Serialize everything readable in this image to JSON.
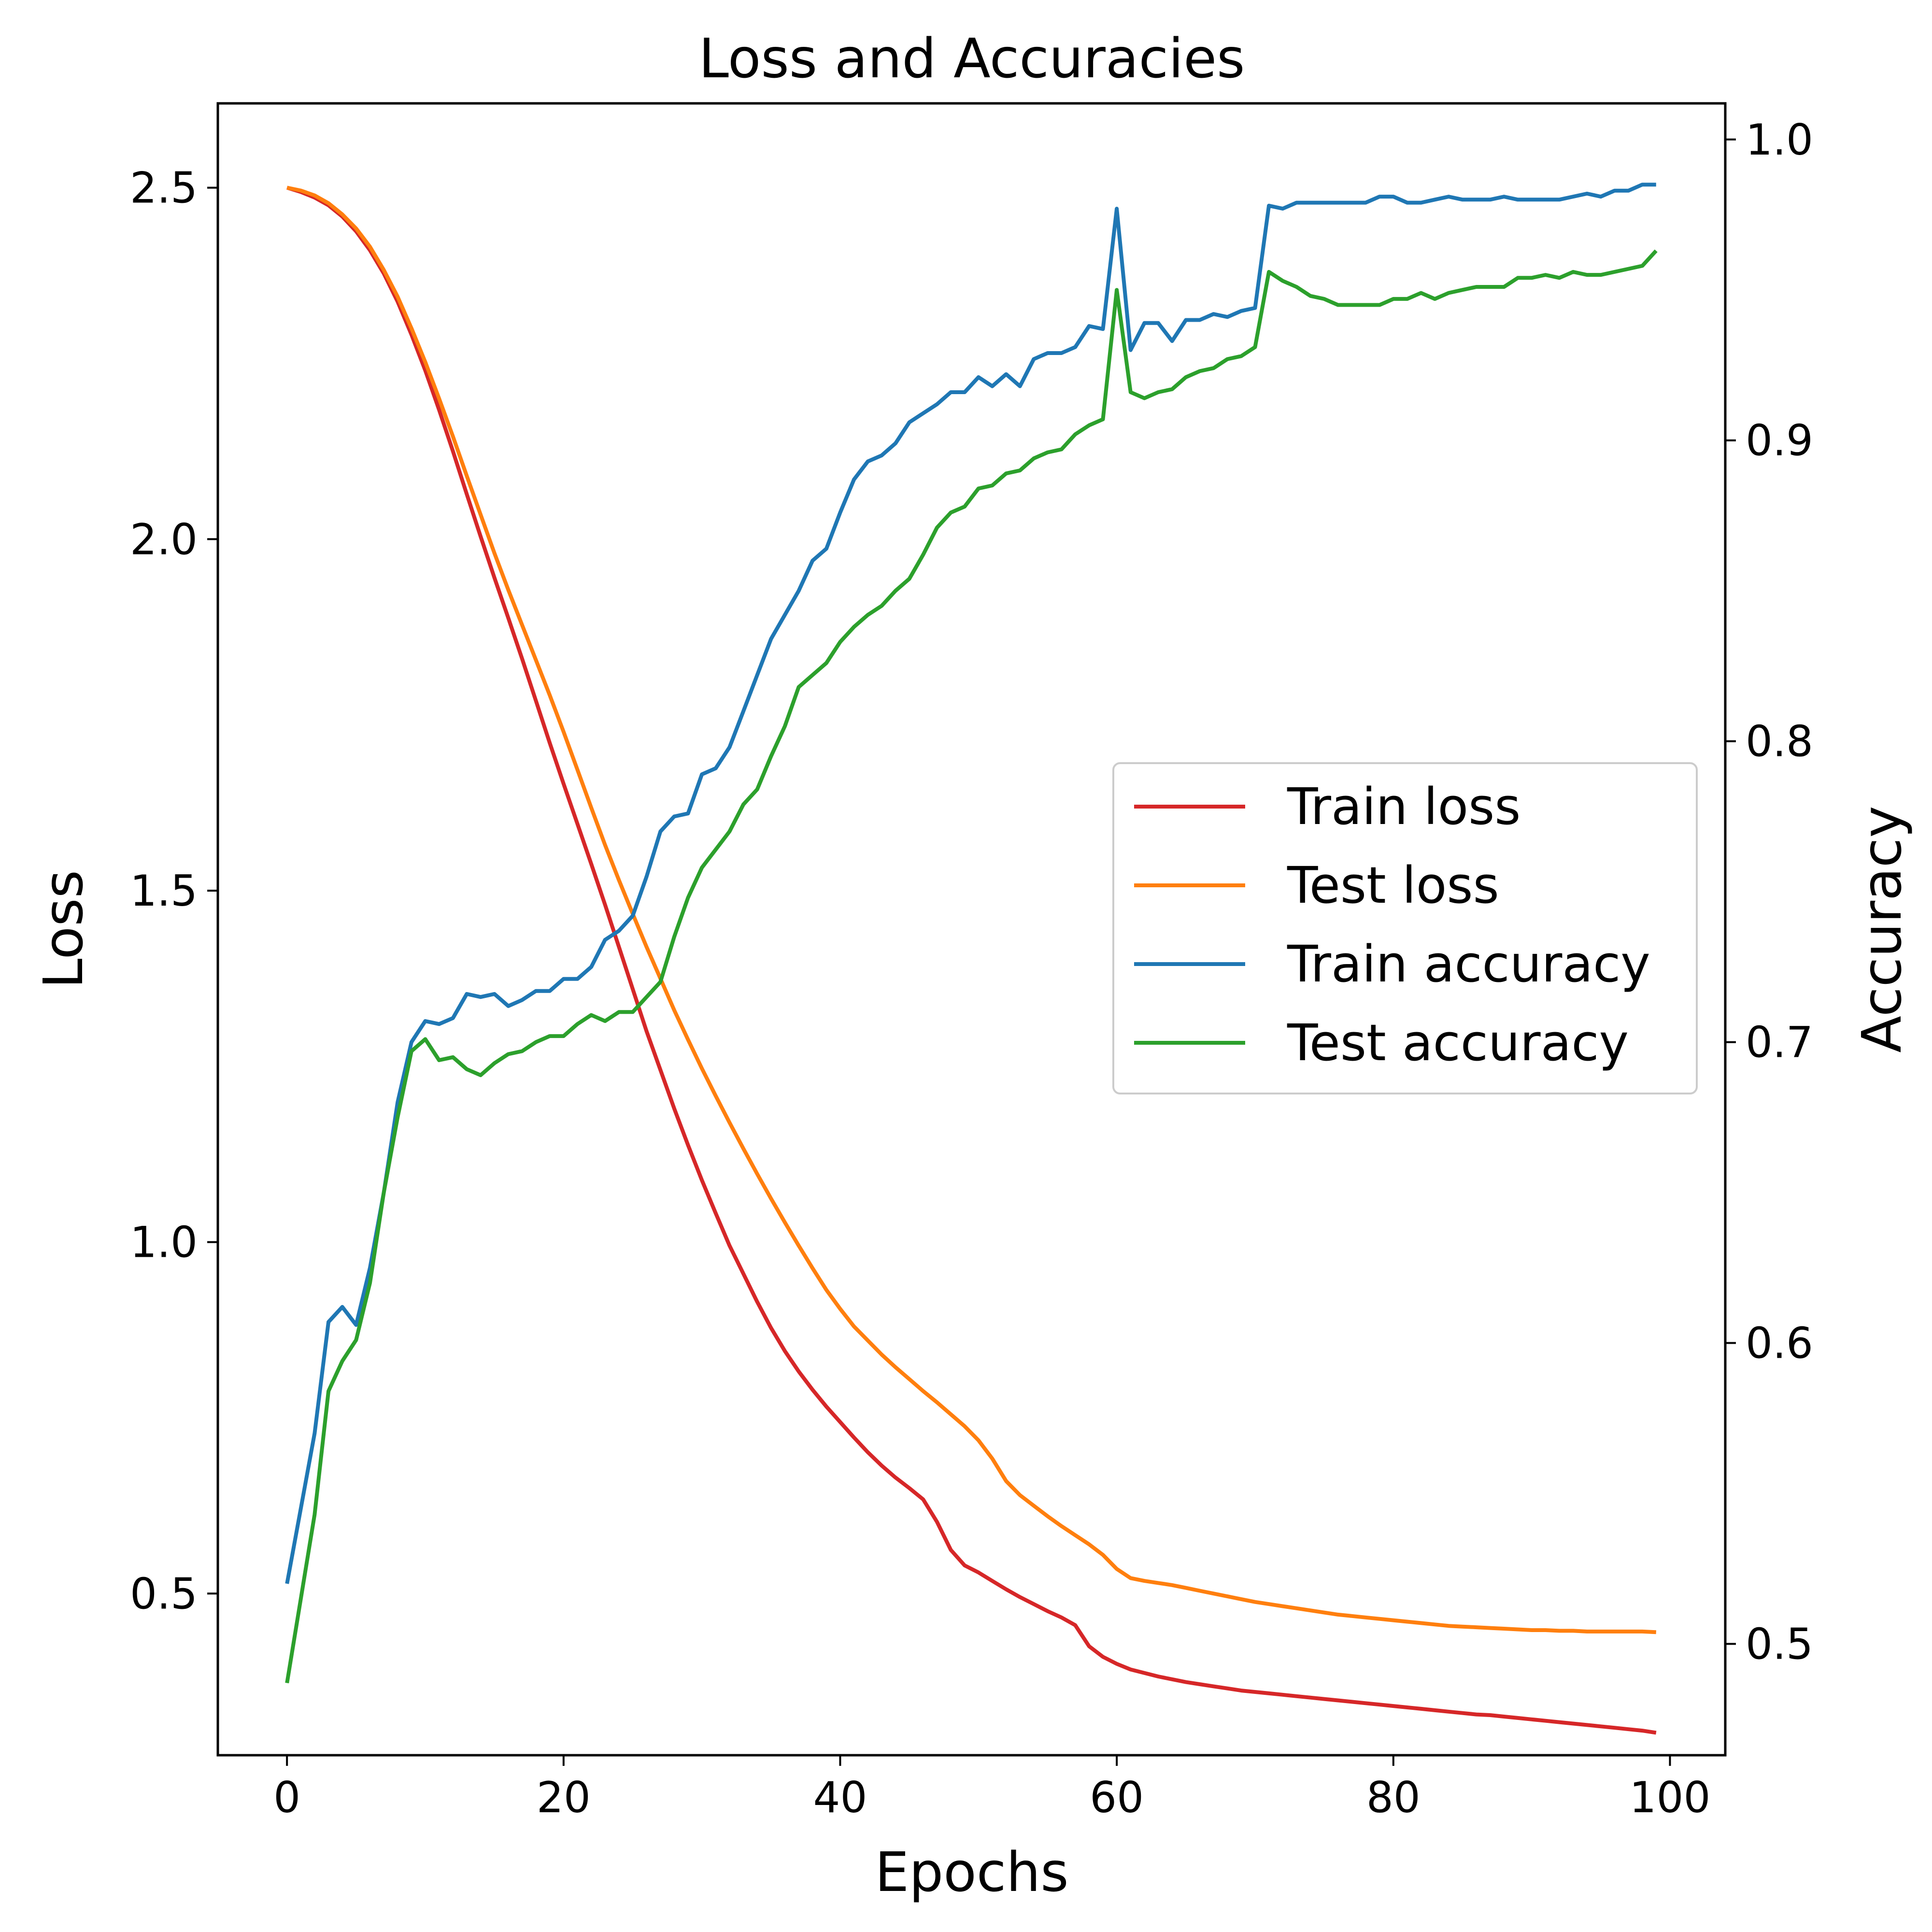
{
  "chart_data": {
    "type": "line",
    "title": "Loss and Accuracies",
    "xlabel": "Epochs",
    "ylabel_left": "Loss",
    "ylabel_right": "Accuracy",
    "xlim": [
      -5,
      104
    ],
    "ylim_left": [
      0.27,
      2.62
    ],
    "ylim_right": [
      0.463,
      1.012
    ],
    "xticks": [
      0,
      20,
      40,
      60,
      80,
      100
    ],
    "yticks_left": [
      0.5,
      1.0,
      1.5,
      2.0,
      2.5
    ],
    "yticks_right": [
      0.5,
      0.6,
      0.7,
      0.8,
      0.9,
      1.0
    ],
    "grid": false,
    "legend_position": "center-right",
    "x": [
      0,
      1,
      2,
      3,
      4,
      5,
      6,
      7,
      8,
      9,
      10,
      11,
      12,
      13,
      14,
      15,
      16,
      17,
      18,
      19,
      20,
      21,
      22,
      23,
      24,
      25,
      26,
      27,
      28,
      29,
      30,
      31,
      32,
      33,
      34,
      35,
      36,
      37,
      38,
      39,
      40,
      41,
      42,
      43,
      44,
      45,
      46,
      47,
      48,
      49,
      50,
      51,
      52,
      53,
      54,
      55,
      56,
      57,
      58,
      59,
      60,
      61,
      62,
      63,
      64,
      65,
      66,
      67,
      68,
      69,
      70,
      71,
      72,
      73,
      74,
      75,
      76,
      77,
      78,
      79,
      80,
      81,
      82,
      83,
      84,
      85,
      86,
      87,
      88,
      89,
      90,
      91,
      92,
      93,
      94,
      95,
      96,
      97,
      98,
      99
    ],
    "series": [
      {
        "name": "Train loss",
        "axis": "left",
        "color": "#d62728",
        "values": [
          2.5,
          2.494,
          2.486,
          2.475,
          2.459,
          2.438,
          2.411,
          2.378,
          2.338,
          2.291,
          2.24,
          2.184,
          2.125,
          2.064,
          2.004,
          1.945,
          1.888,
          1.83,
          1.77,
          1.71,
          1.652,
          1.595,
          1.538,
          1.48,
          1.42,
          1.36,
          1.3,
          1.245,
          1.19,
          1.138,
          1.088,
          1.041,
          0.995,
          0.955,
          0.915,
          0.878,
          0.845,
          0.816,
          0.79,
          0.766,
          0.744,
          0.722,
          0.701,
          0.682,
          0.665,
          0.65,
          0.634,
          0.602,
          0.562,
          0.54,
          0.53,
          0.518,
          0.506,
          0.495,
          0.485,
          0.475,
          0.466,
          0.455,
          0.425,
          0.41,
          0.4,
          0.392,
          0.387,
          0.382,
          0.378,
          0.374,
          0.371,
          0.368,
          0.365,
          0.362,
          0.36,
          0.358,
          0.356,
          0.354,
          0.352,
          0.35,
          0.348,
          0.346,
          0.344,
          0.342,
          0.34,
          0.338,
          0.336,
          0.334,
          0.332,
          0.33,
          0.328,
          0.327,
          0.325,
          0.323,
          0.321,
          0.319,
          0.317,
          0.315,
          0.313,
          0.311,
          0.309,
          0.307,
          0.305,
          0.302
        ]
      },
      {
        "name": "Test loss",
        "axis": "left",
        "color": "#ff7f0e",
        "values": [
          2.5,
          2.496,
          2.489,
          2.478,
          2.462,
          2.442,
          2.416,
          2.383,
          2.345,
          2.3,
          2.252,
          2.2,
          2.146,
          2.09,
          2.035,
          1.98,
          1.928,
          1.878,
          1.828,
          1.778,
          1.726,
          1.672,
          1.618,
          1.565,
          1.515,
          1.467,
          1.42,
          1.375,
          1.33,
          1.288,
          1.247,
          1.208,
          1.17,
          1.133,
          1.097,
          1.062,
          1.028,
          0.995,
          0.963,
          0.932,
          0.905,
          0.88,
          0.86,
          0.84,
          0.822,
          0.805,
          0.788,
          0.772,
          0.755,
          0.738,
          0.718,
          0.692,
          0.66,
          0.64,
          0.625,
          0.61,
          0.596,
          0.583,
          0.57,
          0.555,
          0.535,
          0.522,
          0.518,
          0.515,
          0.512,
          0.508,
          0.504,
          0.5,
          0.496,
          0.492,
          0.488,
          0.485,
          0.482,
          0.479,
          0.476,
          0.473,
          0.47,
          0.468,
          0.466,
          0.464,
          0.462,
          0.46,
          0.458,
          0.456,
          0.454,
          0.453,
          0.452,
          0.451,
          0.45,
          0.449,
          0.448,
          0.448,
          0.447,
          0.447,
          0.446,
          0.446,
          0.446,
          0.446,
          0.446,
          0.445
        ]
      },
      {
        "name": "Train accuracy",
        "axis": "right",
        "color": "#1f77b4",
        "values": [
          0.52,
          0.545,
          0.57,
          0.607,
          0.612,
          0.606,
          0.625,
          0.65,
          0.68,
          0.7,
          0.707,
          0.706,
          0.708,
          0.716,
          0.715,
          0.716,
          0.712,
          0.714,
          0.717,
          0.717,
          0.721,
          0.721,
          0.725,
          0.734,
          0.737,
          0.742,
          0.755,
          0.77,
          0.775,
          0.776,
          0.789,
          0.791,
          0.798,
          0.81,
          0.822,
          0.834,
          0.842,
          0.85,
          0.86,
          0.864,
          0.876,
          0.887,
          0.893,
          0.895,
          0.899,
          0.906,
          0.909,
          0.912,
          0.916,
          0.916,
          0.921,
          0.918,
          0.922,
          0.918,
          0.927,
          0.929,
          0.929,
          0.931,
          0.938,
          0.937,
          0.977,
          0.93,
          0.939,
          0.939,
          0.933,
          0.94,
          0.94,
          0.942,
          0.941,
          0.943,
          0.944,
          0.978,
          0.977,
          0.979,
          0.979,
          0.979,
          0.979,
          0.979,
          0.979,
          0.981,
          0.981,
          0.979,
          0.979,
          0.98,
          0.981,
          0.98,
          0.98,
          0.98,
          0.981,
          0.98,
          0.98,
          0.98,
          0.98,
          0.981,
          0.982,
          0.981,
          0.983,
          0.983,
          0.985,
          0.985
        ]
      },
      {
        "name": "Test accuracy",
        "axis": "right",
        "color": "#2ca02c",
        "values": [
          0.487,
          0.515,
          0.543,
          0.584,
          0.594,
          0.601,
          0.62,
          0.65,
          0.675,
          0.697,
          0.701,
          0.694,
          0.695,
          0.691,
          0.689,
          0.693,
          0.696,
          0.697,
          0.7,
          0.702,
          0.702,
          0.706,
          0.709,
          0.707,
          0.71,
          0.71,
          0.715,
          0.72,
          0.735,
          0.748,
          0.758,
          0.764,
          0.77,
          0.779,
          0.784,
          0.795,
          0.805,
          0.818,
          0.822,
          0.826,
          0.833,
          0.838,
          0.842,
          0.845,
          0.85,
          0.854,
          0.862,
          0.871,
          0.876,
          0.878,
          0.884,
          0.885,
          0.889,
          0.89,
          0.894,
          0.896,
          0.897,
          0.902,
          0.905,
          0.907,
          0.95,
          0.916,
          0.914,
          0.916,
          0.917,
          0.921,
          0.923,
          0.924,
          0.927,
          0.928,
          0.931,
          0.956,
          0.953,
          0.951,
          0.948,
          0.947,
          0.945,
          0.945,
          0.945,
          0.945,
          0.947,
          0.947,
          0.949,
          0.947,
          0.949,
          0.95,
          0.951,
          0.951,
          0.951,
          0.954,
          0.954,
          0.955,
          0.954,
          0.956,
          0.955,
          0.955,
          0.956,
          0.957,
          0.958,
          0.963
        ]
      }
    ]
  }
}
